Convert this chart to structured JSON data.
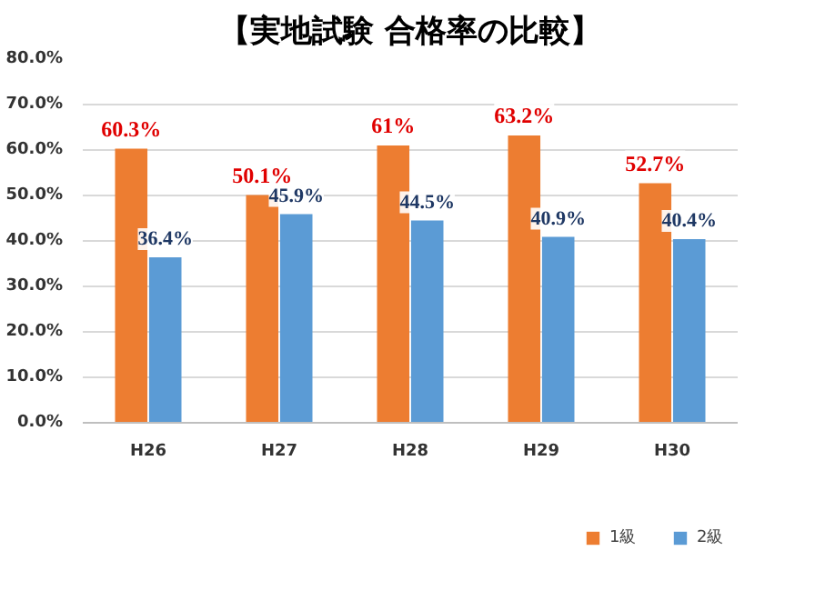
{
  "chart_data": {
    "type": "bar",
    "title": "【実地試験 合格率の比較】",
    "categories": [
      "H26",
      "H27",
      "H28",
      "H29",
      "H30"
    ],
    "series": [
      {
        "name": "1級",
        "color": "#ed7d31",
        "values": [
          60.3,
          50.1,
          61,
          63.2,
          52.7
        ],
        "value_labels": [
          "60.3%",
          "50.1%",
          "61%",
          "63.2%",
          "52.7%"
        ]
      },
      {
        "name": "2級",
        "color": "#5b9bd5",
        "values": [
          36.4,
          45.9,
          44.5,
          40.9,
          40.4
        ],
        "value_labels": [
          "36.4%",
          "45.9%",
          "44.5%",
          "40.9%",
          "40.4%"
        ]
      }
    ],
    "ylim": [
      0,
      80
    ],
    "yticks": [
      {
        "value": 0,
        "label": "0.0%"
      },
      {
        "value": 10,
        "label": "10.0%"
      },
      {
        "value": 20,
        "label": "20.0%"
      },
      {
        "value": 30,
        "label": "30.0%"
      },
      {
        "value": 40,
        "label": "40.0%"
      },
      {
        "value": 50,
        "label": "50.0%"
      },
      {
        "value": 60,
        "label": "60.0%"
      },
      {
        "value": 70,
        "label": "70.0%"
      },
      {
        "value": 80,
        "label": "80.0%"
      }
    ],
    "grid": "y",
    "legend": "bottom"
  }
}
